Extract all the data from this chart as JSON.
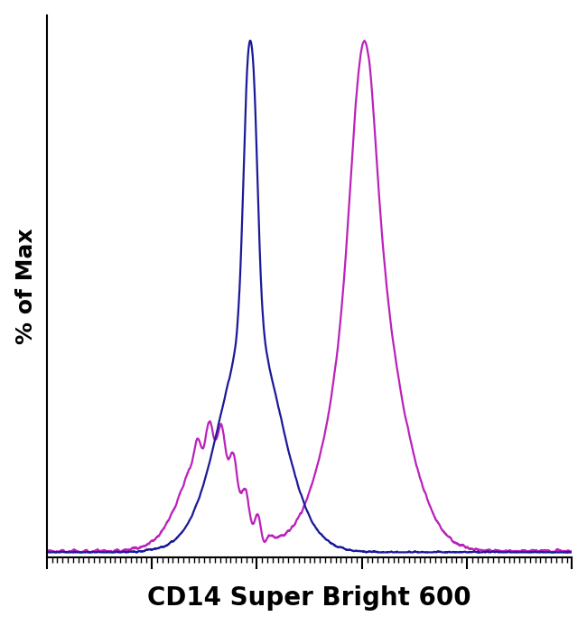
{
  "title": "",
  "xlabel": "CD14 Super Bright 600",
  "ylabel": "% of Max",
  "xlabel_fontsize": 20,
  "ylabel_fontsize": 18,
  "background_color": "#ffffff",
  "blue_color": "#1a1a99",
  "magenta_color": "#bb22bb",
  "blue_linewidth": 1.6,
  "magenta_linewidth": 1.6,
  "xlim": [
    0,
    1000
  ],
  "ylim": [
    -0.01,
    1.05
  ]
}
